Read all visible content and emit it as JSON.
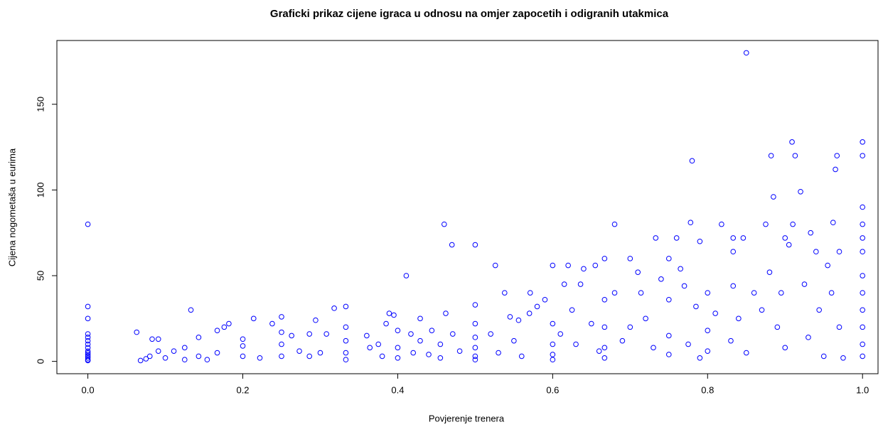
{
  "chart_data": {
    "type": "scatter",
    "title": "Graficki prikaz cijene igraca u odnosu na omjer zapocetih i odigranih utakmica",
    "x_label": "Povjerenje trenera",
    "y_label": "Cijena nogometaša u eurima",
    "color": "#0000ff",
    "xlim": [
      -0.04,
      1.02
    ],
    "ylim": [
      -7.2,
      187.2
    ],
    "xticks": [
      {
        "value": 0,
        "label": "0.0"
      },
      0.2,
      0.4,
      0.6,
      0.8,
      {
        "value": 1,
        "label": "1.0"
      }
    ],
    "yticks": [
      0,
      50,
      100,
      150
    ],
    "grid": false,
    "x": [
      0,
      0,
      0,
      0,
      0,
      0,
      0,
      0,
      0,
      0,
      0,
      0,
      0,
      0,
      0,
      0.063,
      0.068,
      0.075,
      0.08,
      0.083,
      0.091,
      0.091,
      0.1,
      0.111,
      0.125,
      0.125,
      0.133,
      0.143,
      0.143,
      0.154,
      0.167,
      0.167,
      0.176,
      0.182,
      0.2,
      0.2,
      0.2,
      0.214,
      0.222,
      0.238,
      0.25,
      0.25,
      0.25,
      0.25,
      0.263,
      0.273,
      0.286,
      0.286,
      0.294,
      0.3,
      0.308,
      0.318,
      0.333,
      0.333,
      0.333,
      0.333,
      0.333,
      0.36,
      0.364,
      0.375,
      0.38,
      0.385,
      0.389,
      0.395,
      0.4,
      0.4,
      0.4,
      0.411,
      0.417,
      0.42,
      0.429,
      0.429,
      0.44,
      0.444,
      0.455,
      0.455,
      0.46,
      0.462,
      0.47,
      0.471,
      0.48,
      0.5,
      0.5,
      0.5,
      0.5,
      0.5,
      0.5,
      0.5,
      0.52,
      0.526,
      0.53,
      0.538,
      0.545,
      0.55,
      0.556,
      0.56,
      0.57,
      0.571,
      0.58,
      0.59,
      0.6,
      0.6,
      0.6,
      0.6,
      0.6,
      0.61,
      0.615,
      0.62,
      0.625,
      0.63,
      0.636,
      0.64,
      0.65,
      0.655,
      0.66,
      0.667,
      0.667,
      0.667,
      0.667,
      0.667,
      0.68,
      0.68,
      0.69,
      0.7,
      0.7,
      0.71,
      0.714,
      0.72,
      0.73,
      0.733,
      0.74,
      0.75,
      0.75,
      0.75,
      0.75,
      0.76,
      0.765,
      0.77,
      0.775,
      0.778,
      0.78,
      0.785,
      0.79,
      0.79,
      0.8,
      0.8,
      0.8,
      0.81,
      0.818,
      0.83,
      0.833,
      0.833,
      0.833,
      0.84,
      0.846,
      0.85,
      0.85,
      0.86,
      0.87,
      0.875,
      0.88,
      0.882,
      0.885,
      0.89,
      0.895,
      0.9,
      0.9,
      0.905,
      0.909,
      0.91,
      0.913,
      0.92,
      0.925,
      0.93,
      0.933,
      0.94,
      0.944,
      0.95,
      0.955,
      0.96,
      0.962,
      0.965,
      0.967,
      0.97,
      0.97,
      0.975,
      1,
      1,
      1,
      1,
      1,
      1,
      1,
      1,
      1,
      1,
      1,
      1
    ],
    "values": [
      80,
      32,
      25,
      16,
      14,
      12,
      10,
      8,
      6,
      5,
      4,
      3,
      2,
      1,
      0.5,
      17,
      0.5,
      1.5,
      3,
      13,
      6,
      13,
      2,
      6,
      8,
      1,
      30,
      14,
      3,
      1,
      18,
      5,
      20,
      22,
      13,
      3,
      9,
      25,
      2,
      22,
      26,
      17,
      10,
      3,
      15,
      6,
      16,
      3,
      24,
      5,
      16,
      31,
      32,
      20,
      12,
      5,
      1,
      15,
      8,
      10,
      3,
      22,
      28,
      27,
      18,
      8,
      2,
      50,
      16,
      5,
      25,
      12,
      4,
      18,
      10,
      2,
      80,
      28,
      68,
      16,
      6,
      68,
      33,
      22,
      14,
      8,
      3,
      1,
      16,
      56,
      5,
      40,
      26,
      12,
      24,
      3,
      28,
      40,
      32,
      36,
      56,
      22,
      10,
      4,
      1,
      16,
      45,
      56,
      30,
      10,
      45,
      54,
      22,
      56,
      6,
      60,
      36,
      20,
      8,
      2,
      80,
      40,
      12,
      60,
      20,
      52,
      40,
      25,
      8,
      72,
      48,
      60,
      36,
      15,
      4,
      72,
      54,
      44,
      10,
      81,
      117,
      32,
      70,
      2,
      40,
      18,
      6,
      28,
      80,
      12,
      72,
      64,
      44,
      25,
      72,
      180,
      5,
      40,
      30,
      80,
      52,
      120,
      96,
      20,
      40,
      72,
      8,
      68,
      128,
      80,
      120,
      99,
      45,
      14,
      75,
      64,
      30,
      3,
      56,
      40,
      81,
      112,
      120,
      64,
      20,
      2,
      128,
      120,
      90,
      80,
      72,
      64,
      50,
      40,
      30,
      20,
      10,
      3
    ]
  }
}
